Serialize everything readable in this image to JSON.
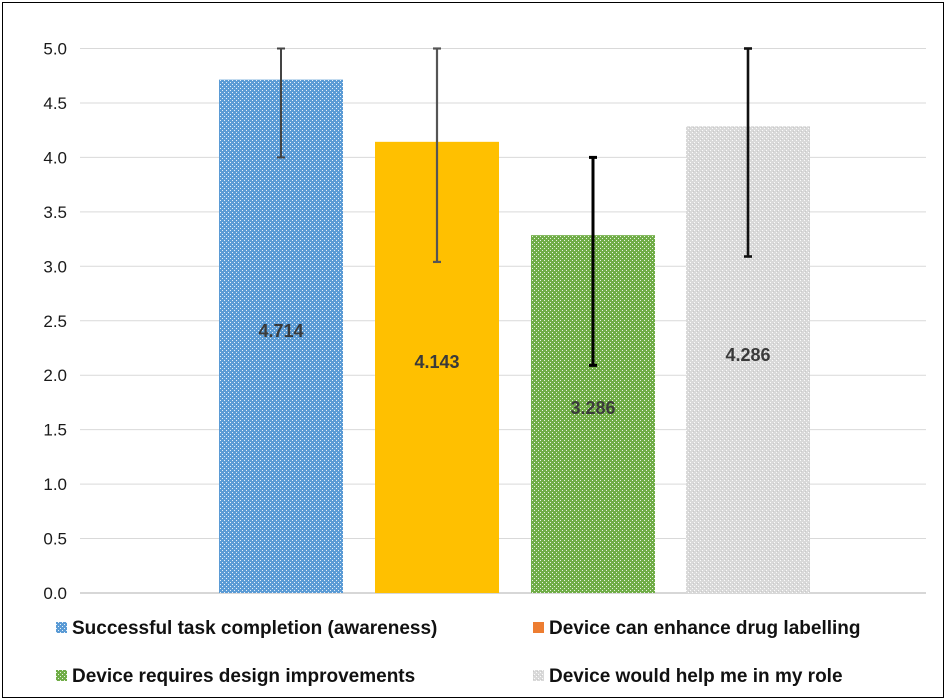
{
  "chart_data": {
    "type": "bar",
    "title": "",
    "xlabel": "",
    "ylabel": "",
    "ylim": [
      0,
      5
    ],
    "y_ticks": [
      "0.0",
      "0.5",
      "1.0",
      "1.5",
      "2.0",
      "2.5",
      "3.0",
      "3.5",
      "4.0",
      "4.5",
      "5.0"
    ],
    "grid": true,
    "legend_position": "bottom",
    "series": [
      {
        "name": "Successful task completion (awareness)",
        "value": 4.714,
        "label": "4.714",
        "error_low": 4.0,
        "error_high": 5.0,
        "color": "#5b9bd5",
        "pattern": "dotted"
      },
      {
        "name": "Device can enhance drug labelling",
        "value": 4.143,
        "label": "4.143",
        "error_low": 3.04,
        "error_high": 5.0,
        "color": "#ffc000",
        "legend_color": "#ed7d31",
        "pattern": "solid"
      },
      {
        "name": "Device requires design improvements",
        "value": 3.286,
        "label": "3.286",
        "error_low": 2.09,
        "error_high": 4.0,
        "color": "#70ad47",
        "pattern": "dotted"
      },
      {
        "name": "Device would help me in my role",
        "value": 4.286,
        "label": "4.286",
        "error_low": 3.09,
        "error_high": 5.0,
        "color": "#d0d0d0",
        "pattern": "dotted"
      }
    ]
  }
}
